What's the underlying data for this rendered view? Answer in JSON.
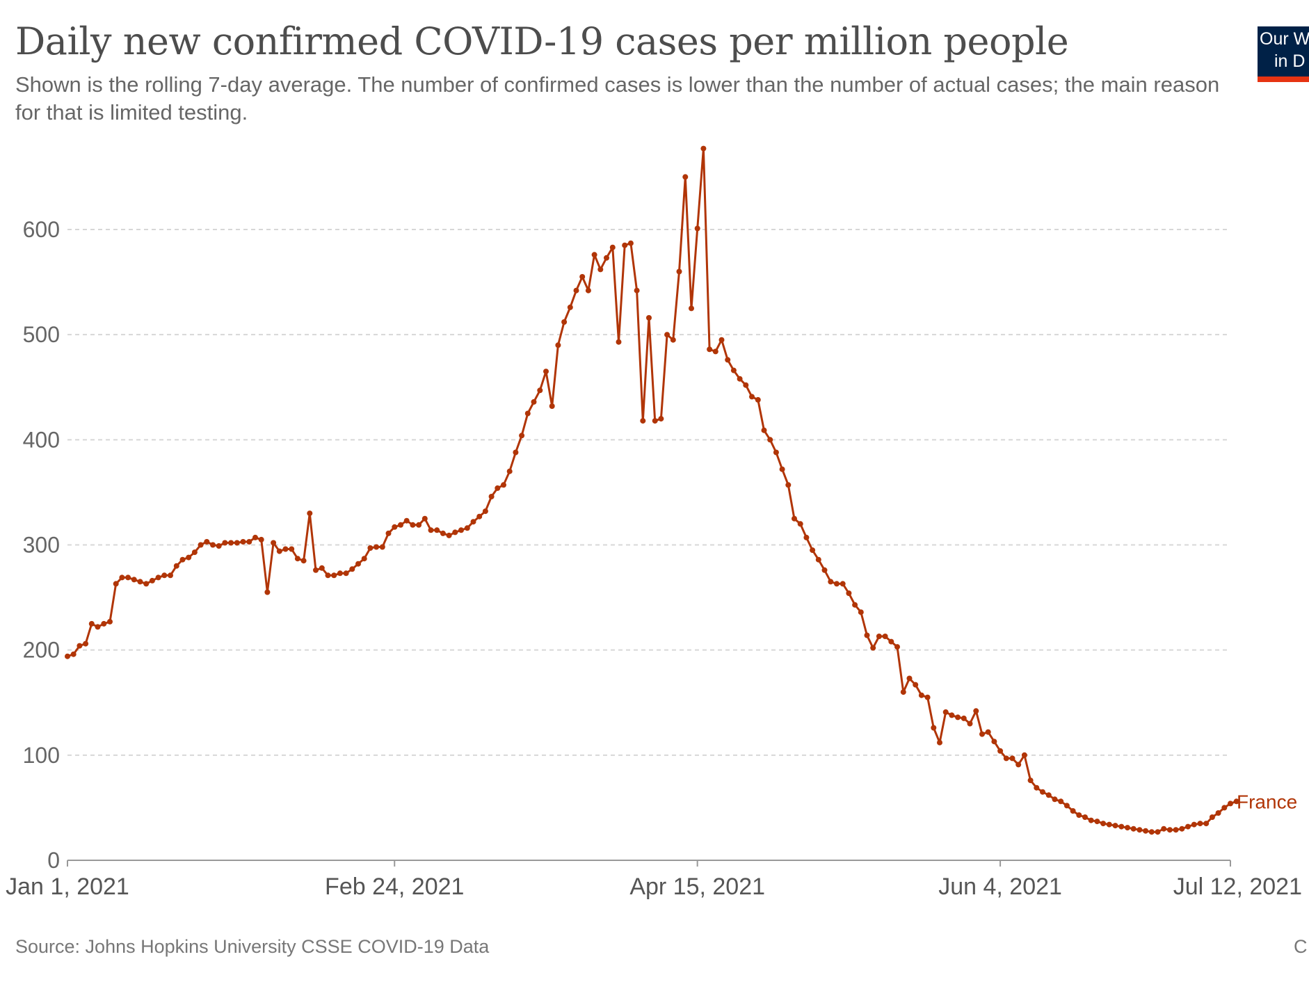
{
  "header": {
    "title": "Daily new confirmed COVID-19 cases per million people",
    "subtitle": "Shown is the rolling 7-day average. The number of confirmed cases is lower than the number of actual cases; the main reason for that is limited testing."
  },
  "logo": {
    "line1": "Our W",
    "line2": "in D",
    "bg_color": "#002147",
    "accent_color": "#e63312"
  },
  "footer": {
    "source": "Source: Johns Hopkins University CSSE COVID-19 Data",
    "right": "C"
  },
  "chart_data": {
    "type": "line",
    "title": "Daily new confirmed COVID-19 cases per million people",
    "xlabel": "",
    "ylabel": "",
    "x_start": "2021-01-01",
    "x_end": "2021-07-12",
    "x_ticks": [
      "Jan 1, 2021",
      "Feb 24, 2021",
      "Apr 15, 2021",
      "Jun 4, 2021",
      "Jul 12, 2021"
    ],
    "x_tick_dates": [
      "2021-01-01",
      "2021-02-24",
      "2021-04-15",
      "2021-06-04",
      "2021-07-12"
    ],
    "y_ticks": [
      0,
      100,
      200,
      300,
      400,
      500,
      600
    ],
    "ylim": [
      0,
      680
    ],
    "grid": "horizontal dashed",
    "series": [
      {
        "name": "France",
        "color": "#b13507",
        "values": [
          194,
          196,
          204,
          206,
          225,
          222,
          225,
          227,
          263,
          269,
          269,
          267,
          265,
          263,
          266,
          269,
          271,
          271,
          280,
          286,
          288,
          293,
          300,
          303,
          300,
          299,
          302,
          302,
          302,
          303,
          303,
          307,
          305,
          255,
          302,
          294,
          296,
          296,
          287,
          285,
          330,
          276,
          278,
          271,
          271,
          273,
          273,
          277,
          282,
          287,
          297,
          298,
          298,
          311,
          317,
          319,
          323,
          319,
          319,
          325,
          314,
          314,
          311,
          309,
          312,
          314,
          316,
          322,
          327,
          332,
          346,
          354,
          357,
          370,
          388,
          404,
          425,
          436,
          447,
          465,
          432,
          490,
          512,
          526,
          542,
          555,
          542,
          576,
          562,
          573,
          583,
          493,
          585,
          587,
          542,
          418,
          516,
          418,
          420,
          500,
          495,
          560,
          650,
          525,
          601,
          677,
          486,
          484,
          495,
          476,
          466,
          458,
          452,
          441,
          438,
          409,
          400,
          388,
          372,
          357,
          325,
          320,
          307,
          295,
          286,
          276,
          265,
          263,
          263,
          254,
          243,
          236,
          214,
          202,
          213,
          213,
          208,
          203,
          160,
          173,
          167,
          157,
          155,
          126,
          112,
          141,
          138,
          136,
          135,
          130,
          142,
          120,
          122,
          113,
          104,
          97,
          97,
          91,
          100,
          76,
          69,
          65,
          62,
          58,
          56,
          52,
          47,
          43,
          41,
          38,
          37,
          35,
          34,
          33,
          32,
          31,
          30,
          29,
          28,
          27,
          27,
          30,
          29,
          29,
          30,
          32,
          34,
          35,
          35,
          41,
          45,
          50,
          54,
          56
        ]
      }
    ]
  }
}
